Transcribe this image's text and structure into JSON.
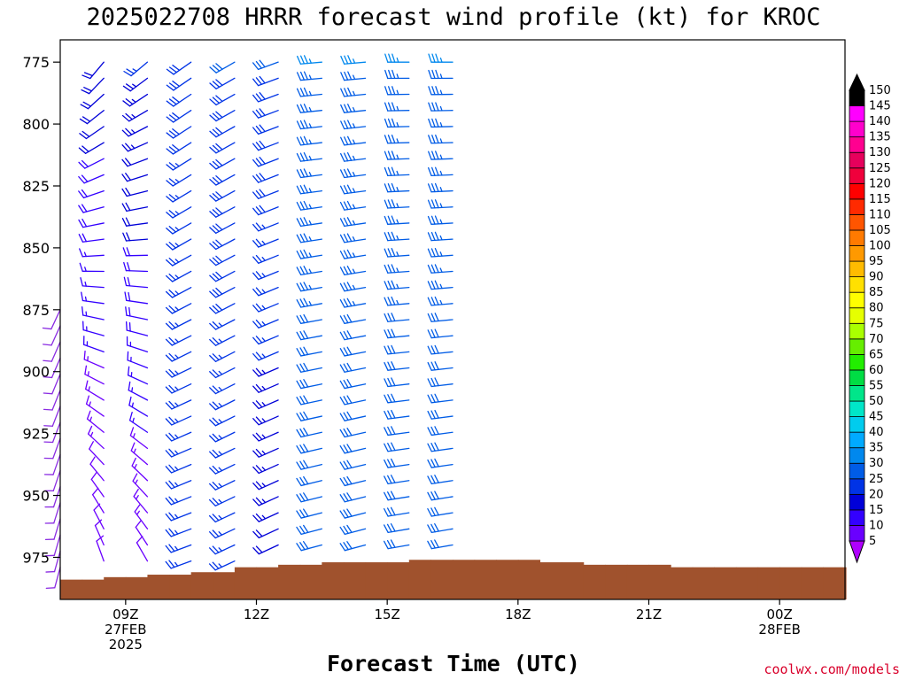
{
  "chart_data": {
    "type": "wind-barb",
    "title": "2025022708 HRRR forecast wind profile (kt) for KROC",
    "xlabel": "Forecast Time (UTC)",
    "credit": "coolwx.com/models",
    "yaxis": {
      "label": "",
      "reversed": true,
      "range": [
        766,
        992
      ],
      "ticks": [
        775,
        800,
        825,
        850,
        875,
        900,
        925,
        950,
        975
      ]
    },
    "xaxis": {
      "range_hours": [
        7.5,
        25.5
      ],
      "ticks": [
        {
          "hour": 9,
          "lines": [
            "09Z",
            "27FEB",
            "2025"
          ]
        },
        {
          "hour": 12,
          "lines": [
            "12Z"
          ]
        },
        {
          "hour": 15,
          "lines": [
            "15Z"
          ]
        },
        {
          "hour": 18,
          "lines": [
            "18Z"
          ]
        },
        {
          "hour": 21,
          "lines": [
            "21Z"
          ]
        },
        {
          "hour": 24,
          "lines": [
            "00Z",
            "28FEB"
          ]
        }
      ]
    },
    "colorbar": {
      "levels": [
        5,
        10,
        15,
        20,
        25,
        30,
        35,
        40,
        45,
        50,
        55,
        60,
        65,
        70,
        75,
        80,
        85,
        90,
        95,
        100,
        105,
        110,
        115,
        120,
        125,
        130,
        135,
        140,
        145,
        150
      ],
      "colors": [
        "#8a2be2",
        "#6a00ff",
        "#3300ff",
        "#0000d8",
        "#0033e6",
        "#005ce6",
        "#0088ee",
        "#00aaff",
        "#00ccee",
        "#00e6c8",
        "#00e68a",
        "#00dd44",
        "#22ee00",
        "#66ee00",
        "#aaff00",
        "#e6ff00",
        "#ffff00",
        "#ffe000",
        "#ffbb00",
        "#ff9900",
        "#ff7a00",
        "#ff5500",
        "#ff2a00",
        "#ff0000",
        "#f0003c",
        "#e6005c",
        "#ff0090",
        "#ff00cc",
        "#ff00ff",
        "#000000"
      ],
      "top_triangle_color": "#000000",
      "bottom_triangle_color": "#b000ff"
    },
    "terrain_color": "#a0522d",
    "terrain": [
      {
        "hour": 7.5,
        "p": 984
      },
      {
        "hour": 8,
        "p": 984
      },
      {
        "hour": 8.5,
        "p": 983
      },
      {
        "hour": 9,
        "p": 983
      },
      {
        "hour": 9.5,
        "p": 982
      },
      {
        "hour": 10,
        "p": 982
      },
      {
        "hour": 10.5,
        "p": 981
      },
      {
        "hour": 11,
        "p": 981
      },
      {
        "hour": 11.5,
        "p": 979
      },
      {
        "hour": 12,
        "p": 979
      },
      {
        "hour": 12.5,
        "p": 978
      },
      {
        "hour": 13,
        "p": 978
      },
      {
        "hour": 13.5,
        "p": 977
      },
      {
        "hour": 14,
        "p": 977
      },
      {
        "hour": 14.5,
        "p": 977
      },
      {
        "hour": 15,
        "p": 977
      },
      {
        "hour": 15.5,
        "p": 976
      },
      {
        "hour": 16,
        "p": 976
      },
      {
        "hour": 16.5,
        "p": 976
      },
      {
        "hour": 17,
        "p": 976
      },
      {
        "hour": 17.5,
        "p": 976
      },
      {
        "hour": 18,
        "p": 976
      },
      {
        "hour": 18.5,
        "p": 977
      },
      {
        "hour": 19,
        "p": 977
      },
      {
        "hour": 19.5,
        "p": 978
      },
      {
        "hour": 20,
        "p": 978
      },
      {
        "hour": 20.5,
        "p": 978
      },
      {
        "hour": 21,
        "p": 978
      },
      {
        "hour": 21.5,
        "p": 979
      },
      {
        "hour": 22,
        "p": 979
      },
      {
        "hour": 22.5,
        "p": 979
      },
      {
        "hour": 23,
        "p": 979
      },
      {
        "hour": 23.5,
        "p": 979
      },
      {
        "hour": 24,
        "p": 979
      },
      {
        "hour": 24.5,
        "p": 979
      },
      {
        "hour": 25,
        "p": 979
      },
      {
        "hour": 25.5,
        "p": 979
      }
    ],
    "columns": [
      {
        "hour": 7.5,
        "top_p": 875,
        "speed_top": 8,
        "speed_bot": 8,
        "dir_top": 205,
        "dir_bot": 195
      },
      {
        "hour": 8.5,
        "top_p": 775,
        "speed_top": 22,
        "speed_bot": 10,
        "dir_top": 220,
        "dir_bot": 340
      },
      {
        "hour": 9.5,
        "top_p": 775,
        "speed_top": 25,
        "speed_bot": 12,
        "dir_top": 230,
        "dir_bot": 330
      },
      {
        "hour": 10.5,
        "top_p": 775,
        "speed_top": 28,
        "speed_bot": 25,
        "dir_top": 235,
        "dir_bot": 250
      },
      {
        "hour": 11.5,
        "top_p": 775,
        "speed_top": 30,
        "speed_bot": 25,
        "dir_top": 240,
        "dir_bot": 245
      },
      {
        "hour": 12.5,
        "top_p": 775,
        "speed_top": 30,
        "speed_bot": 22,
        "dir_top": 250,
        "dir_bot": 245
      },
      {
        "hour": 13.5,
        "top_p": 775,
        "speed_top": 35,
        "speed_bot": 30,
        "dir_top": 265,
        "dir_bot": 255
      },
      {
        "hour": 14.5,
        "top_p": 775,
        "speed_top": 35,
        "speed_bot": 30,
        "dir_top": 265,
        "dir_bot": 255
      },
      {
        "hour": 15.5,
        "top_p": 775,
        "speed_top": 35,
        "speed_bot": 30,
        "dir_top": 270,
        "dir_bot": 260
      },
      {
        "hour": 16.5,
        "top_p": 775,
        "speed_top": 35,
        "speed_bot": 30,
        "dir_top": 270,
        "dir_bot": 260
      }
    ]
  }
}
